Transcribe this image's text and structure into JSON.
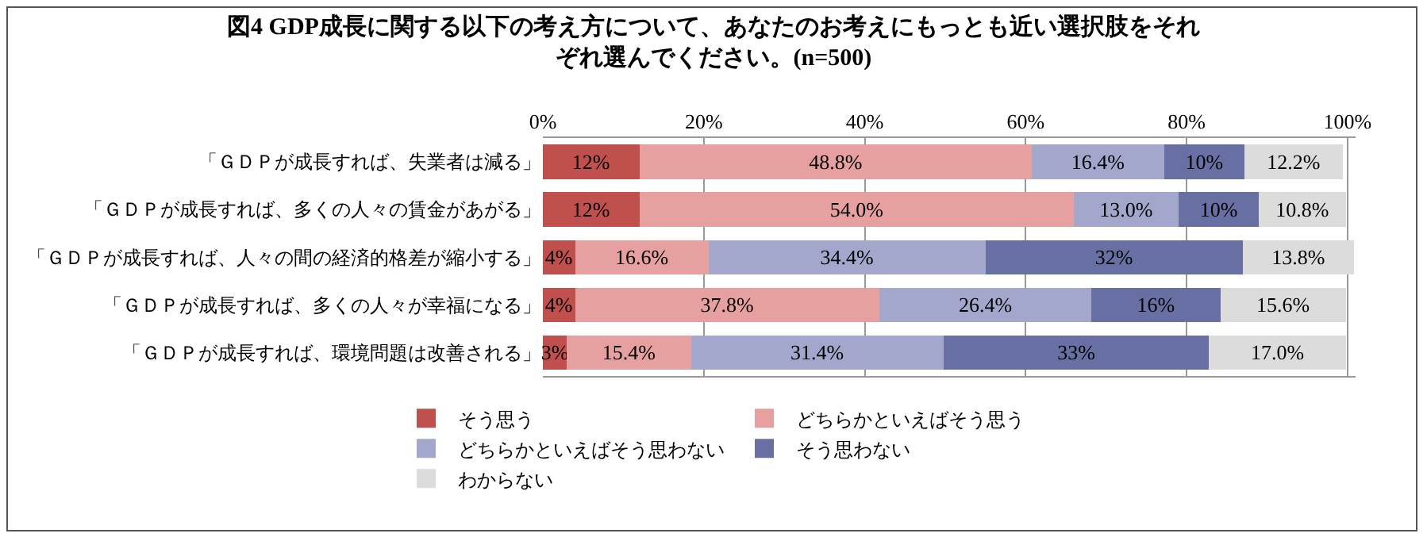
{
  "chart_data": {
    "type": "bar",
    "orientation": "horizontal",
    "stacked": true,
    "title": "図4 GDP成長に関する以下の考え方について、あなたのお考えにもっとも近い選択肢をそれぞれ選んでください。(n=500)",
    "categories": [
      "「ＧＤＰが成長すれば、失業者は減る」",
      "「ＧＤＰが成長すれば、多くの人々の賃金があがる」",
      "「ＧＤＰが成長すれば、人々の間の経済的格差が縮小する」",
      "「ＧＤＰが成長すれば、多くの人々が幸福になる」",
      "「ＧＤＰが成長すれば、環境問題は改善される」"
    ],
    "series": [
      {
        "name": "そう思う",
        "color": "#c0504d",
        "values": [
          12,
          12,
          4,
          4,
          3
        ],
        "value_labels": [
          "12%",
          "12%",
          "4%",
          "4%",
          "3%"
        ]
      },
      {
        "name": "どちらかといえばそう思う",
        "color": "#e6a0a0",
        "values": [
          48.8,
          54.0,
          16.6,
          37.8,
          15.4
        ],
        "value_labels": [
          "48.8%",
          "54.0%",
          "16.6%",
          "37.8%",
          "15.4%"
        ]
      },
      {
        "name": "どちらかといえばそう思わない",
        "color": "#a3a7cc",
        "values": [
          16.4,
          13.0,
          34.4,
          26.4,
          31.4
        ],
        "value_labels": [
          "16.4%",
          "13.0%",
          "34.4%",
          "26.4%",
          "31.4%"
        ]
      },
      {
        "name": "そう思わない",
        "color": "#6870a3",
        "values": [
          10,
          10,
          32,
          16,
          33
        ],
        "value_labels": [
          "10%",
          "10%",
          "32%",
          "16%",
          "33%"
        ]
      },
      {
        "name": "わからない",
        "color": "#dcdcdc",
        "values": [
          12.2,
          10.8,
          13.8,
          15.6,
          17.0
        ],
        "value_labels": [
          "12.2%",
          "10.8%",
          "13.8%",
          "15.6%",
          "17.0%"
        ]
      }
    ],
    "xlim": [
      0,
      101
    ],
    "xticks": [
      {
        "value": 0,
        "label": "0%"
      },
      {
        "value": 20,
        "label": "20%"
      },
      {
        "value": 40,
        "label": "40%"
      },
      {
        "value": 60,
        "label": "60%"
      },
      {
        "value": 80,
        "label": "80%"
      },
      {
        "value": 100,
        "label": "100%"
      }
    ],
    "grid": "x",
    "legend": "bottom"
  }
}
